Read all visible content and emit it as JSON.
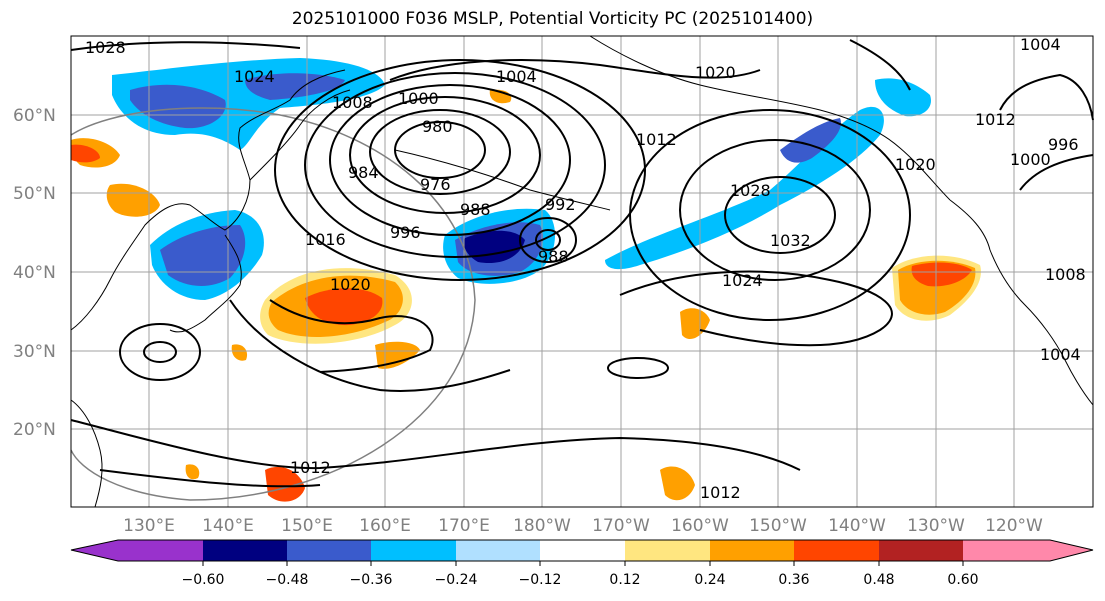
{
  "title": "2025101000 F036 MSLP, Potential Vorticity PC (2025101400)",
  "map": {
    "lat_labels": [
      "60°N",
      "50°N",
      "40°N",
      "30°N",
      "20°N"
    ],
    "lon_labels": [
      "130°E",
      "140°E",
      "150°E",
      "160°E",
      "170°E",
      "180°W",
      "170°W",
      "160°W",
      "150°W",
      "140°W",
      "130°W",
      "120°W"
    ],
    "isobar_labels": [
      "1028",
      "1024",
      "1008",
      "1000",
      "980",
      "984",
      "976",
      "988",
      "996",
      "992",
      "988",
      "1004",
      "1020",
      "1012",
      "1028",
      "1032",
      "1024",
      "1020",
      "1016",
      "1020",
      "1012",
      "1012",
      "1004",
      "1000",
      "996",
      "1012",
      "1008",
      "1004"
    ],
    "colors": {
      "coastline": "#000000",
      "isobar": "#000000",
      "grid": "#a0a0a0",
      "neg_strong": "#000080",
      "neg_mid": "#3a5bcc",
      "neg_light": "#00bfff",
      "pos_light": "#ffe680",
      "pos_mid": "#ffa000",
      "pos_strong": "#ff4500"
    }
  },
  "colorbar": {
    "ticks": [
      "−0.60",
      "−0.48",
      "−0.36",
      "−0.24",
      "−0.12",
      "0.12",
      "0.24",
      "0.36",
      "0.48",
      "0.60"
    ],
    "colors": [
      "#9932cc",
      "#000080",
      "#3a5bcc",
      "#00bfff",
      "#b0e0ff",
      "#ffffff",
      "#ffe680",
      "#ffa000",
      "#ff4500",
      "#b22222",
      "#ff88aa"
    ]
  }
}
